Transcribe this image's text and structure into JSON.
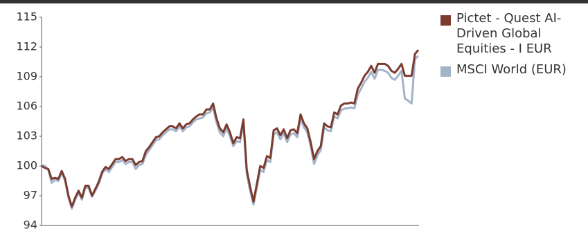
{
  "chart_data": {
    "type": "line",
    "ylim": [
      94,
      115
    ],
    "yticks": [
      94,
      97,
      100,
      103,
      106,
      109,
      112,
      115
    ],
    "series": [
      {
        "name": "Pictet - Quest AI-Driven Global Equities - I EUR",
        "color": "#7b3b2f",
        "values": [
          100.0,
          99.8,
          99.7,
          98.7,
          98.8,
          98.7,
          99.5,
          98.7,
          97.0,
          95.9,
          96.8,
          97.5,
          96.8,
          98.0,
          98.0,
          97.0,
          97.7,
          98.4,
          99.4,
          99.9,
          99.7,
          100.2,
          100.7,
          100.7,
          100.9,
          100.5,
          100.7,
          100.7,
          100.1,
          100.4,
          100.5,
          101.5,
          101.9,
          102.4,
          102.9,
          103.0,
          103.4,
          103.7,
          104.0,
          104.0,
          103.8,
          104.3,
          103.8,
          104.2,
          104.3,
          104.7,
          105.0,
          105.2,
          105.2,
          105.7,
          105.7,
          106.3,
          104.8,
          103.8,
          103.4,
          104.2,
          103.4,
          102.3,
          102.9,
          102.8,
          104.7,
          99.6,
          97.9,
          96.4,
          98.2,
          100.0,
          99.8,
          101.0,
          100.8,
          103.6,
          103.8,
          103.1,
          103.7,
          102.8,
          103.6,
          103.7,
          103.3,
          105.2,
          104.3,
          103.8,
          102.4,
          100.7,
          101.5,
          102.0,
          104.3,
          104.0,
          103.9,
          105.4,
          105.2,
          106.1,
          106.3,
          106.3,
          106.4,
          106.3,
          107.8,
          108.4,
          109.1,
          109.5,
          110.1,
          109.4,
          110.3,
          110.3,
          110.3,
          110.1,
          109.6,
          109.4,
          109.8,
          110.3,
          109.1,
          109.1,
          109.1,
          111.3,
          111.7
        ]
      },
      {
        "name": "MSCI World (EUR)",
        "color": "#a3b3c9",
        "values": [
          100.1,
          100.0,
          99.6,
          98.3,
          98.6,
          98.5,
          99.3,
          98.5,
          96.8,
          95.7,
          96.6,
          97.3,
          96.6,
          97.8,
          97.8,
          96.9,
          97.5,
          98.2,
          99.2,
          99.7,
          99.4,
          99.9,
          100.4,
          100.4,
          100.6,
          100.2,
          100.4,
          100.4,
          99.7,
          100.1,
          100.2,
          101.1,
          101.6,
          102.1,
          102.6,
          102.7,
          103.1,
          103.4,
          103.7,
          103.7,
          103.5,
          104.0,
          103.5,
          103.9,
          104.0,
          104.4,
          104.7,
          104.8,
          104.9,
          105.3,
          105.4,
          105.9,
          104.4,
          103.4,
          103.0,
          103.8,
          103.0,
          102.0,
          102.5,
          102.4,
          104.3,
          99.2,
          97.5,
          96.1,
          97.8,
          99.6,
          99.4,
          100.6,
          100.4,
          103.2,
          103.4,
          102.7,
          103.3,
          102.4,
          103.2,
          103.3,
          102.9,
          104.8,
          103.9,
          103.4,
          102.0,
          100.2,
          101.1,
          101.6,
          103.9,
          103.6,
          103.5,
          105.0,
          104.8,
          105.6,
          105.8,
          105.8,
          105.9,
          105.8,
          107.2,
          107.8,
          108.5,
          108.9,
          109.5,
          108.8,
          109.7,
          109.7,
          109.6,
          109.4,
          108.9,
          108.7,
          109.1,
          109.6,
          106.8,
          106.6,
          106.3,
          110.8,
          111.1
        ]
      }
    ]
  }
}
